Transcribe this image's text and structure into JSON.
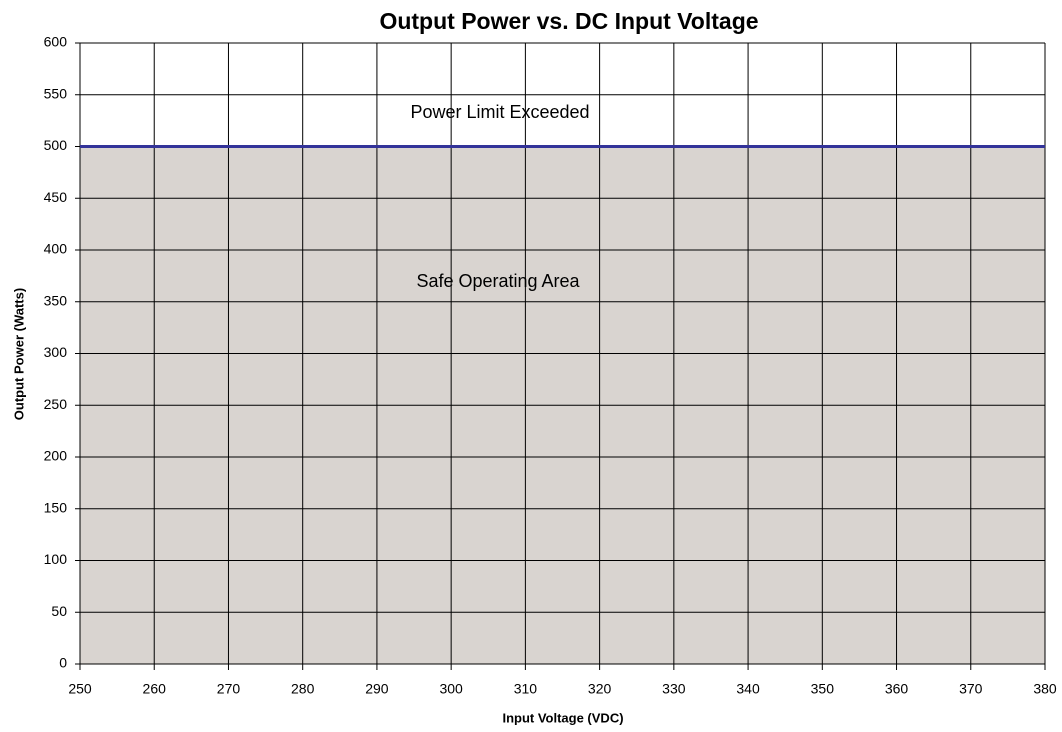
{
  "chart_data": {
    "type": "area",
    "title": "Output Power vs. DC Input Voltage",
    "x_label": "Input Voltage (VDC)",
    "y_label": "Output Power (Watts)",
    "x": [
      250,
      380
    ],
    "values": [
      500,
      500
    ],
    "color": "#333399",
    "fill_color": "#d9d4d0",
    "annotations": [
      "Power Limit Exceeded",
      "Safe Operating Area"
    ],
    "xlim": [
      250,
      380
    ],
    "xticks": [
      250,
      260,
      270,
      280,
      290,
      300,
      310,
      320,
      330,
      340,
      350,
      360,
      370,
      380
    ],
    "ylim": [
      0,
      600
    ],
    "yticks": [
      0,
      50,
      100,
      150,
      200,
      250,
      300,
      350,
      400,
      450,
      500,
      550,
      600
    ],
    "grid": true
  }
}
